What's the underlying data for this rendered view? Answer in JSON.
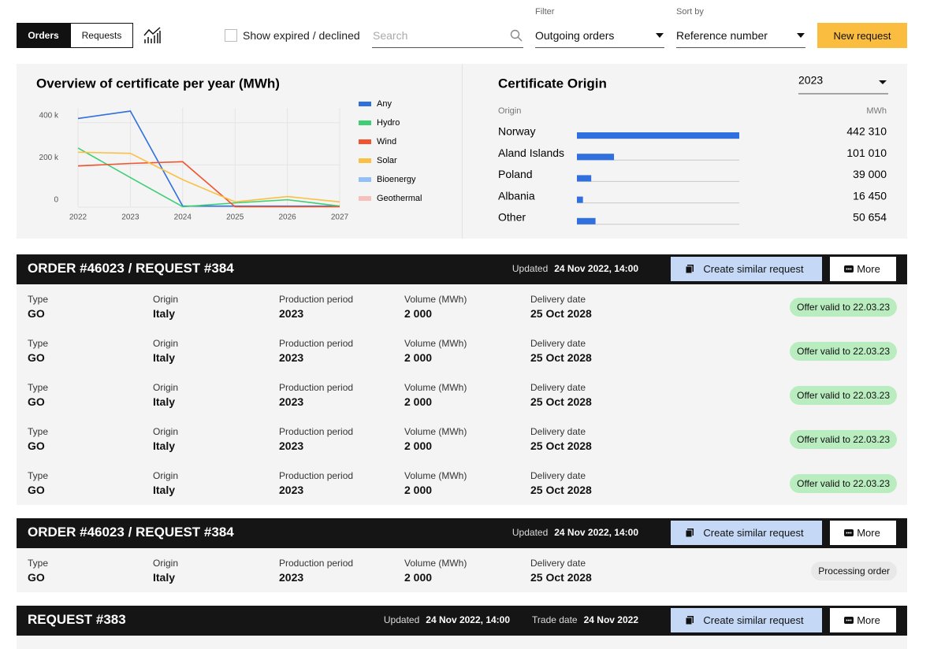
{
  "toolbar": {
    "tabs": [
      "Orders",
      "Requests"
    ],
    "show_expired": "Show expired / declined",
    "search_placeholder": "Search",
    "filter_label": "Filter",
    "filter_value": "Outgoing orders",
    "sort_label": "Sort by",
    "sort_value": "Reference number",
    "new_request": "New request"
  },
  "chart_data": [
    {
      "type": "line",
      "title": "Overview of certificate per year (MWh)",
      "categories": [
        "2022",
        "2023",
        "2024",
        "2025",
        "2026",
        "2027"
      ],
      "series": [
        {
          "name": "Any",
          "color": "#2f6fde",
          "values": [
            420000,
            455000,
            5000,
            5000,
            5000,
            5000
          ]
        },
        {
          "name": "Hydro",
          "color": "#3ecf74",
          "values": [
            280000,
            140000,
            2000,
            20000,
            35000,
            5000
          ]
        },
        {
          "name": "Wind",
          "color": "#f0532d",
          "values": [
            195000,
            207000,
            215000,
            2000,
            2000,
            2000
          ]
        },
        {
          "name": "Solar",
          "color": "#f9c043",
          "values": [
            260000,
            255000,
            130000,
            25000,
            50000,
            25000
          ]
        },
        {
          "name": "Bioenergy",
          "color": "#92bff5",
          "values": [
            null,
            null,
            null,
            null,
            null,
            null
          ]
        },
        {
          "name": "Geothermal",
          "color": "#f8c0bb",
          "values": [
            null,
            null,
            null,
            null,
            null,
            null
          ]
        }
      ],
      "ylim": [
        0,
        470000
      ],
      "yticks": [
        0,
        {
          "value": 200000,
          "label": "200 k"
        },
        {
          "value": 400000,
          "label": "400 k"
        }
      ],
      "grid": true
    },
    {
      "type": "bar",
      "orientation": "horizontal",
      "title": "Certificate Origin",
      "year": "2023",
      "category_header": "Origin",
      "value_header": "MWh",
      "categories": [
        "Norway",
        "Aland Islands",
        "Poland",
        "Albania",
        "Other"
      ],
      "values": [
        442310,
        101010,
        39000,
        16450,
        50654
      ],
      "value_labels": [
        "442 310",
        "101 010",
        "39 000",
        "16 450",
        "50 654"
      ],
      "xlim": [
        0,
        442310
      ],
      "color": "#2f6fde"
    }
  ],
  "columns": [
    "Type",
    "Origin",
    "Production period",
    "Volume (MWh)",
    "Delivery date"
  ],
  "orders": [
    {
      "title": "ORDER #46023 / REQUEST #384",
      "updated_label": "Updated",
      "updated": "24 Nov 2022, 14:00",
      "create": "Create similar request",
      "more": "More",
      "rows": [
        {
          "values": [
            "GO",
            "Italy",
            "2023",
            "2 000",
            "25 Oct 2028"
          ],
          "status": "Offer valid to 22.03.23",
          "status_color": "#b9edc0"
        },
        {
          "values": [
            "GO",
            "Italy",
            "2023",
            "2 000",
            "25 Oct 2028"
          ],
          "status": "Offer valid to 22.03.23",
          "status_color": "#b9edc0"
        },
        {
          "values": [
            "GO",
            "Italy",
            "2023",
            "2 000",
            "25 Oct 2028"
          ],
          "status": "Offer valid to 22.03.23",
          "status_color": "#b9edc0"
        },
        {
          "values": [
            "GO",
            "Italy",
            "2023",
            "2 000",
            "25 Oct 2028"
          ],
          "status": "Offer valid to 22.03.23",
          "status_color": "#b9edc0"
        },
        {
          "values": [
            "GO",
            "Italy",
            "2023",
            "2 000",
            "25 Oct 2028"
          ],
          "status": "Offer valid to 22.03.23",
          "status_color": "#b9edc0"
        }
      ]
    },
    {
      "title": "ORDER #46023 / REQUEST #384",
      "updated_label": "Updated",
      "updated": "24 Nov 2022, 14:00",
      "create": "Create similar request",
      "more": "More",
      "rows": [
        {
          "values": [
            "GO",
            "Italy",
            "2023",
            "2 000",
            "25 Oct 2028"
          ],
          "status": "Processing order",
          "status_color": "#e8e8e8"
        }
      ]
    },
    {
      "title": "REQUEST #383",
      "updated_label": "Updated",
      "updated": "24 Nov 2022, 14:00",
      "trade_label": "Trade date",
      "trade_date": "24 Nov 2022",
      "create": "Create similar request",
      "more": "More",
      "rows": []
    }
  ]
}
